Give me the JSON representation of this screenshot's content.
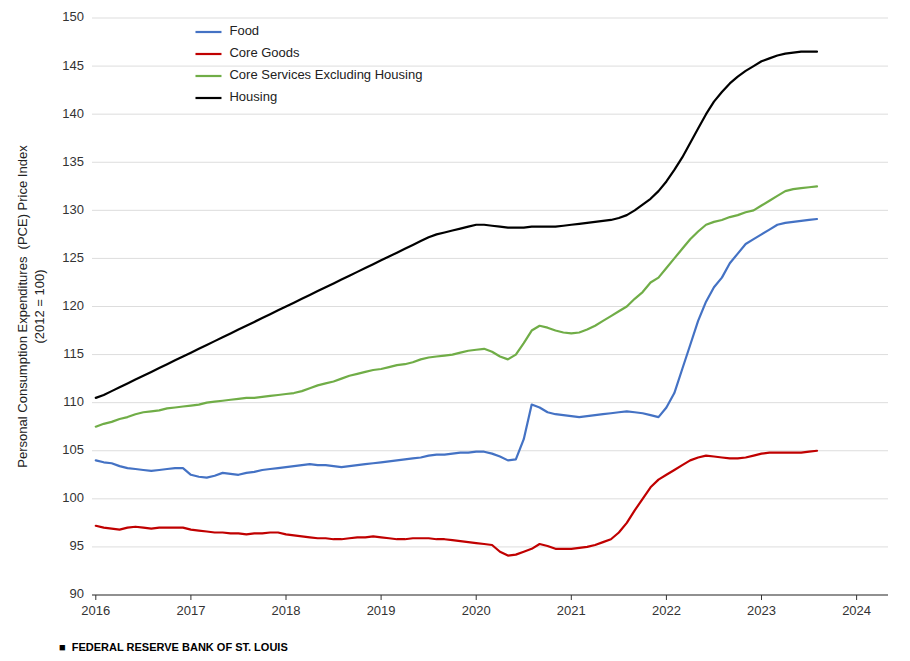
{
  "chart_data": {
    "type": "line",
    "y_label": "Personal Consumption Expenditures  (PCE) Price Index\n(2012 = 100)",
    "annotations": [
      "■  FEDERAL RESERVE BANK OF ST. LOUIS"
    ],
    "x": [
      2016,
      2016.0833333,
      2016.1666667,
      2016.25,
      2016.3333333,
      2016.4166667,
      2016.5,
      2016.5833333,
      2016.6666667,
      2016.75,
      2016.8333333,
      2016.9166667,
      2017,
      2017.0833333,
      2017.1666667,
      2017.25,
      2017.3333333,
      2017.4166667,
      2017.5,
      2017.5833333,
      2017.6666667,
      2017.75,
      2017.8333333,
      2017.9166667,
      2018,
      2018.0833333,
      2018.1666667,
      2018.25,
      2018.3333333,
      2018.4166667,
      2018.5,
      2018.5833333,
      2018.6666667,
      2018.75,
      2018.8333333,
      2018.9166667,
      2019,
      2019.0833333,
      2019.1666667,
      2019.25,
      2019.3333333,
      2019.4166667,
      2019.5,
      2019.5833333,
      2019.6666667,
      2019.75,
      2019.8333333,
      2019.9166667,
      2020,
      2020.0833333,
      2020.1666667,
      2020.25,
      2020.3333333,
      2020.4166667,
      2020.5,
      2020.5833333,
      2020.6666667,
      2020.75,
      2020.8333333,
      2020.9166667,
      2021,
      2021.0833333,
      2021.1666667,
      2021.25,
      2021.3333333,
      2021.4166667,
      2021.5,
      2021.5833333,
      2021.6666667,
      2021.75,
      2021.8333333,
      2021.9166667,
      2022,
      2022.0833333,
      2022.1666667,
      2022.25,
      2022.3333333,
      2022.4166667,
      2022.5,
      2022.5833333,
      2022.6666667,
      2022.75,
      2022.8333333,
      2022.9166667,
      2023,
      2023.0833333,
      2023.1666667,
      2023.25,
      2023.3333333,
      2023.4166667,
      2023.5,
      2023.5833333
    ],
    "xlim": [
      2015.96,
      2024.33
    ],
    "xticks": [
      2016,
      2017,
      2018,
      2019,
      2020,
      2021,
      2022,
      2023,
      2024
    ],
    "ylim": [
      90,
      150
    ],
    "yticks": [
      90,
      95,
      100,
      105,
      110,
      115,
      120,
      125,
      130,
      135,
      140,
      145,
      150
    ],
    "grid": true,
    "legend": "upper left",
    "series": [
      {
        "name": "Food",
        "color": "#4472C4",
        "values": [
          104.0,
          103.8,
          103.7,
          103.4,
          103.2,
          103.1,
          103.0,
          102.9,
          103.0,
          103.1,
          103.2,
          103.2,
          102.5,
          102.3,
          102.2,
          102.4,
          102.7,
          102.6,
          102.5,
          102.7,
          102.8,
          103.0,
          103.1,
          103.2,
          103.3,
          103.4,
          103.5,
          103.6,
          103.5,
          103.5,
          103.4,
          103.3,
          103.4,
          103.5,
          103.6,
          103.7,
          103.8,
          103.9,
          104.0,
          104.1,
          104.2,
          104.3,
          104.5,
          104.6,
          104.6,
          104.7,
          104.8,
          104.8,
          104.9,
          104.9,
          104.7,
          104.4,
          104.0,
          104.1,
          106.2,
          109.8,
          109.5,
          109.0,
          108.8,
          108.7,
          108.6,
          108.5,
          108.6,
          108.7,
          108.8,
          108.9,
          109.0,
          109.1,
          109.0,
          108.9,
          108.7,
          108.5,
          109.5,
          111.0,
          113.5,
          116.0,
          118.5,
          120.5,
          122.0,
          123.0,
          124.5,
          125.5,
          126.5,
          127.0,
          127.5,
          128.0,
          128.5,
          128.7,
          128.8,
          128.9,
          129.0,
          129.1
        ]
      },
      {
        "name": "Core Goods",
        "color": "#C00000",
        "values": [
          97.2,
          97.0,
          96.9,
          96.8,
          97.0,
          97.1,
          97.0,
          96.9,
          97.0,
          97.0,
          97.0,
          97.0,
          96.8,
          96.7,
          96.6,
          96.5,
          96.5,
          96.4,
          96.4,
          96.3,
          96.4,
          96.4,
          96.5,
          96.5,
          96.3,
          96.2,
          96.1,
          96.0,
          95.9,
          95.9,
          95.8,
          95.8,
          95.9,
          96.0,
          96.0,
          96.1,
          96.0,
          95.9,
          95.8,
          95.8,
          95.9,
          95.9,
          95.9,
          95.8,
          95.8,
          95.7,
          95.6,
          95.5,
          95.4,
          95.3,
          95.2,
          94.5,
          94.1,
          94.2,
          94.5,
          94.8,
          95.3,
          95.1,
          94.8,
          94.8,
          94.8,
          94.9,
          95.0,
          95.2,
          95.5,
          95.8,
          96.5,
          97.5,
          98.8,
          100.0,
          101.2,
          102.0,
          102.5,
          103.0,
          103.5,
          104.0,
          104.3,
          104.5,
          104.4,
          104.3,
          104.2,
          104.2,
          104.3,
          104.5,
          104.7,
          104.8,
          104.8,
          104.8,
          104.8,
          104.8,
          104.9,
          105.0
        ]
      },
      {
        "name": "Core Services Excluding Housing",
        "color": "#70AD47",
        "values": [
          107.5,
          107.8,
          108.0,
          108.3,
          108.5,
          108.8,
          109.0,
          109.1,
          109.2,
          109.4,
          109.5,
          109.6,
          109.7,
          109.8,
          110.0,
          110.1,
          110.2,
          110.3,
          110.4,
          110.5,
          110.5,
          110.6,
          110.7,
          110.8,
          110.9,
          111.0,
          111.2,
          111.5,
          111.8,
          112.0,
          112.2,
          112.5,
          112.8,
          113.0,
          113.2,
          113.4,
          113.5,
          113.7,
          113.9,
          114.0,
          114.2,
          114.5,
          114.7,
          114.8,
          114.9,
          115.0,
          115.2,
          115.4,
          115.5,
          115.6,
          115.3,
          114.8,
          114.5,
          115.0,
          116.2,
          117.5,
          118.0,
          117.8,
          117.5,
          117.3,
          117.2,
          117.3,
          117.6,
          118.0,
          118.5,
          119.0,
          119.5,
          120.0,
          120.8,
          121.5,
          122.5,
          123.0,
          124.0,
          125.0,
          126.0,
          127.0,
          127.8,
          128.5,
          128.8,
          129.0,
          129.3,
          129.5,
          129.8,
          130.0,
          130.5,
          131.0,
          131.5,
          132.0,
          132.2,
          132.3,
          132.4,
          132.5
        ]
      },
      {
        "name": "Housing",
        "color": "#000000",
        "values": [
          110.5,
          110.8,
          111.2,
          111.6,
          112.0,
          112.4,
          112.8,
          113.2,
          113.6,
          114.0,
          114.4,
          114.8,
          115.2,
          115.6,
          116.0,
          116.4,
          116.8,
          117.2,
          117.6,
          118.0,
          118.4,
          118.8,
          119.2,
          119.6,
          120.0,
          120.4,
          120.8,
          121.2,
          121.6,
          122.0,
          122.4,
          122.8,
          123.2,
          123.6,
          124.0,
          124.4,
          124.8,
          125.2,
          125.6,
          126.0,
          126.4,
          126.8,
          127.2,
          127.5,
          127.7,
          127.9,
          128.1,
          128.3,
          128.5,
          128.5,
          128.4,
          128.3,
          128.2,
          128.2,
          128.2,
          128.3,
          128.3,
          128.3,
          128.3,
          128.4,
          128.5,
          128.6,
          128.7,
          128.8,
          128.9,
          129.0,
          129.2,
          129.5,
          130.0,
          130.6,
          131.2,
          132.0,
          133.0,
          134.2,
          135.5,
          137.0,
          138.5,
          140.0,
          141.3,
          142.3,
          143.2,
          143.9,
          144.5,
          145.0,
          145.5,
          145.8,
          146.1,
          146.3,
          146.4,
          146.5,
          146.5,
          146.5
        ]
      }
    ]
  }
}
